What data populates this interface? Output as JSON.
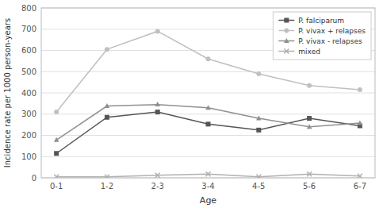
{
  "chart_data": {
    "type": "line",
    "xlabel": "Age",
    "ylabel": "Incidence rate per 1000 person-years",
    "categories": [
      "0-1",
      "1-2",
      "2-3",
      "3-4",
      "4-5",
      "5-6",
      "6-7"
    ],
    "series": [
      {
        "name": "P. falciparum",
        "color": "#555555",
        "marker": "square",
        "values": [
          115,
          285,
          310,
          253,
          225,
          280,
          245
        ]
      },
      {
        "name": "P. vivax + relapses",
        "color": "#c0c0c0",
        "marker": "circle",
        "values": [
          310,
          605,
          690,
          560,
          490,
          435,
          415
        ]
      },
      {
        "name": "P. vivax - relapses",
        "color": "#909090",
        "marker": "triangle",
        "values": [
          178,
          338,
          345,
          330,
          280,
          240,
          258
        ]
      },
      {
        "name": "mixed",
        "color": "#b0b0b0",
        "marker": "x",
        "values": [
          5,
          5,
          12,
          18,
          5,
          18,
          8
        ]
      }
    ],
    "ylim": [
      0,
      800
    ],
    "yticks": [
      0,
      100,
      200,
      300,
      400,
      500,
      600,
      700,
      800
    ],
    "grid": true,
    "legend": "upper right"
  }
}
